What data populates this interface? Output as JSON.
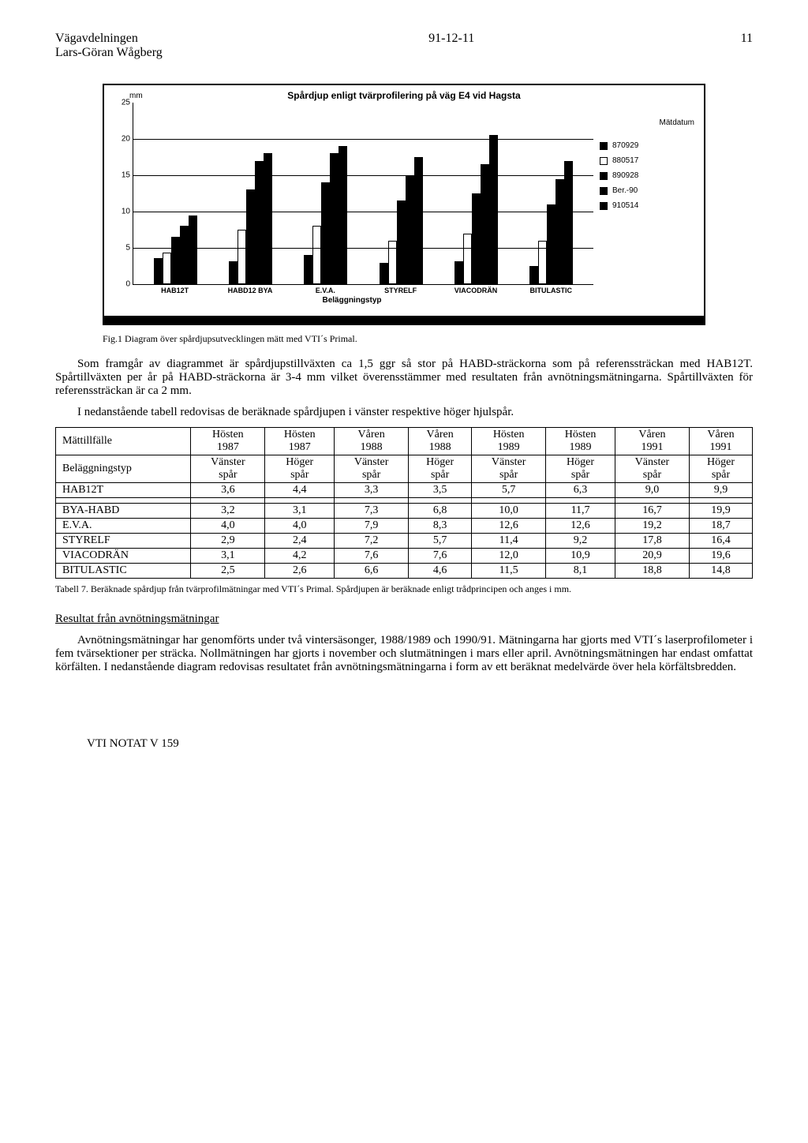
{
  "header": {
    "dept": "Vägavdelningen",
    "author": "Lars-Göran Wågberg",
    "date": "91-12-11",
    "pageno": "11"
  },
  "chart": {
    "title": "Spårdjup enligt tvärprofilering på väg E4 vid Hagsta",
    "y_unit": "mm",
    "ylim": [
      0,
      25
    ],
    "ytick_step": 5,
    "x_axis_title": "Beläggningstyp",
    "legend_title": "Mätdatum",
    "background_color": "#ffffff",
    "grid_color": "#000000",
    "categories": [
      "HAB12T",
      "HABD12 BYA",
      "E.V.A.",
      "STYRELF",
      "VIACODRÄN",
      "BITULASTIC"
    ],
    "series": [
      {
        "name": "870929",
        "fill": "#000000",
        "border": "#000000",
        "values": [
          3.6,
          3.2,
          4.0,
          2.9,
          3.1,
          2.5
        ]
      },
      {
        "name": "880517",
        "fill": "#ffffff",
        "border": "#000000",
        "values": [
          4.4,
          7.5,
          8.0,
          6.0,
          7.0,
          6.0
        ]
      },
      {
        "name": "890928",
        "fill": "#000000",
        "border": "#000000",
        "values": [
          6.5,
          13.0,
          14.0,
          11.5,
          12.5,
          11.0
        ]
      },
      {
        "name": "Ber.-90",
        "fill": "#000000",
        "border": "#000000",
        "values": [
          8.0,
          17.0,
          18.0,
          15.0,
          16.5,
          14.5
        ]
      },
      {
        "name": "910514",
        "fill": "#000000",
        "border": "#000000",
        "values": [
          9.5,
          18.0,
          19.0,
          17.5,
          20.5,
          17.0
        ]
      }
    ]
  },
  "fig_caption": "Fig.1  Diagram över spårdjupsutvecklingen mätt med VTI´s Primal.",
  "para1": "Som framgår av diagrammet är spårdjupstillväxten ca 1,5 ggr så stor på HABD-sträckorna som på referenssträckan med HAB12T. Spårtillväxten per år på HABD-sträckorna är 3-4 mm vilket överensstämmer med resultaten från avnötningsmätningarna. Spårtillväxten för referenssträckan är ca 2 mm.",
  "para2": "I nedanstående tabell redovisas de beräknade spårdjupen i vänster respektive höger hjulspår.",
  "table": {
    "header1": [
      "Mättillfälle",
      "Hösten 1987",
      "Hösten 1987",
      "Våren 1988",
      "Våren 1988",
      "Hösten 1989",
      "Hösten 1989",
      "Våren 1991",
      "Våren 1991"
    ],
    "header2": [
      "Beläggningstyp",
      "Vänster spår",
      "Höger spår",
      "Vänster spår",
      "Höger spår",
      "Vänster spår",
      "Höger spår",
      "Vänster spår",
      "Höger spår"
    ],
    "rows": [
      [
        "HAB12T",
        "3,6",
        "4,4",
        "3,3",
        "3,5",
        "5,7",
        "6,3",
        "9,0",
        "9,9"
      ],
      [
        "BYA-HABD",
        "3,2",
        "3,1",
        "7,3",
        "6,8",
        "10,0",
        "11,7",
        "16,7",
        "19,9"
      ],
      [
        "E.V.A.",
        "4,0",
        "4,0",
        "7,9",
        "8,3",
        "12,6",
        "12,6",
        "19,2",
        "18,7"
      ],
      [
        "STYRELF",
        "2,9",
        "2,4",
        "7,2",
        "5,7",
        "11,4",
        "9,2",
        "17,8",
        "16,4"
      ],
      [
        "VIACODRÄN",
        "3,1",
        "4,2",
        "7,6",
        "7,6",
        "12,0",
        "10,9",
        "20,9",
        "19,6"
      ],
      [
        "BITULASTIC",
        "2,5",
        "2,6",
        "6,6",
        "4,6",
        "11,5",
        "8,1",
        "18,8",
        "14,8"
      ]
    ]
  },
  "table_caption": "Tabell 7.  Beräknade spårdjup från tvärprofilmätningar med VTI´s Primal.  Spårdjupen är beräknade enligt trådprincipen och anges i mm.",
  "section_heading": "Resultat från avnötningsmätningar",
  "para3": "Avnötningsmätningar har genomförts under två vintersäsonger, 1988/1989 och 1990/91. Mätningarna har gjorts med VTI´s laserprofilometer i fem tvärsektioner per sträcka. Nollmätningen har gjorts i november och slutmätningen i mars eller april. Avnötningsmätningen har endast omfattat körfälten. I nedanstående diagram redovisas resultatet från avnötningsmätningarna i form av ett beräknat medelvärde över hela körfältsbredden.",
  "footer": "VTI NOTAT V 159"
}
